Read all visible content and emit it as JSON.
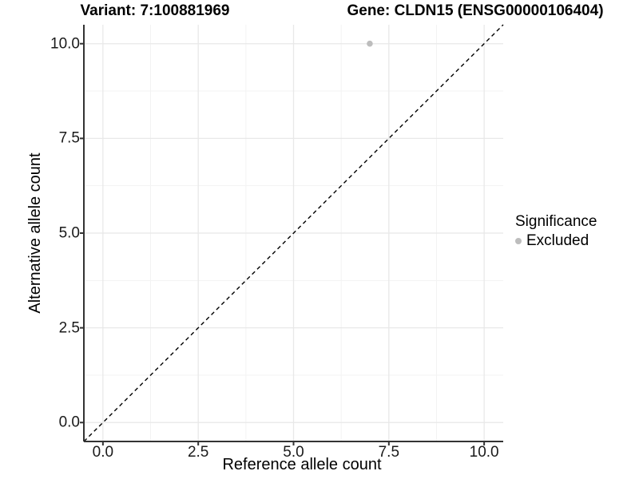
{
  "header": {
    "variant_title": "Variant: 7:100881969",
    "gene_title": "Gene: CLDN15 (ENSG00000106404)"
  },
  "legend": {
    "title": "Significance",
    "items": [
      {
        "label": "Excluded",
        "color": "#bdbdbd"
      }
    ]
  },
  "colors": {
    "point": "#bdbdbd",
    "grid_major": "#e8e8e8",
    "grid_minor": "#f3f3f3",
    "axis": "#333333",
    "reference_line": "#000000",
    "background": "#ffffff",
    "text": "#000000"
  },
  "chart_data": {
    "type": "scatter",
    "points": [
      {
        "x": 7,
        "y": 10,
        "series": "Excluded"
      }
    ],
    "series": [
      {
        "name": "Excluded",
        "color": "#bdbdbd"
      }
    ],
    "reference_line": {
      "kind": "identity y=x",
      "style": "dashed",
      "color": "#000000"
    },
    "xlabel": "Reference allele count",
    "ylabel": "Alternative allele count",
    "xlim": [
      -0.5,
      10.5
    ],
    "ylim": [
      -0.5,
      10.5
    ],
    "x_ticks": [
      0,
      2.5,
      5,
      7.5,
      10
    ],
    "y_ticks": [
      0,
      2.5,
      5,
      7.5,
      10
    ],
    "x_tick_labels": [
      "0.0",
      "2.5",
      "5.0",
      "7.5",
      "10.0"
    ],
    "y_tick_labels": [
      "0.0",
      "2.5",
      "5.0",
      "7.5",
      "10.0"
    ],
    "grid": "major+minor",
    "legend_position": "right"
  }
}
